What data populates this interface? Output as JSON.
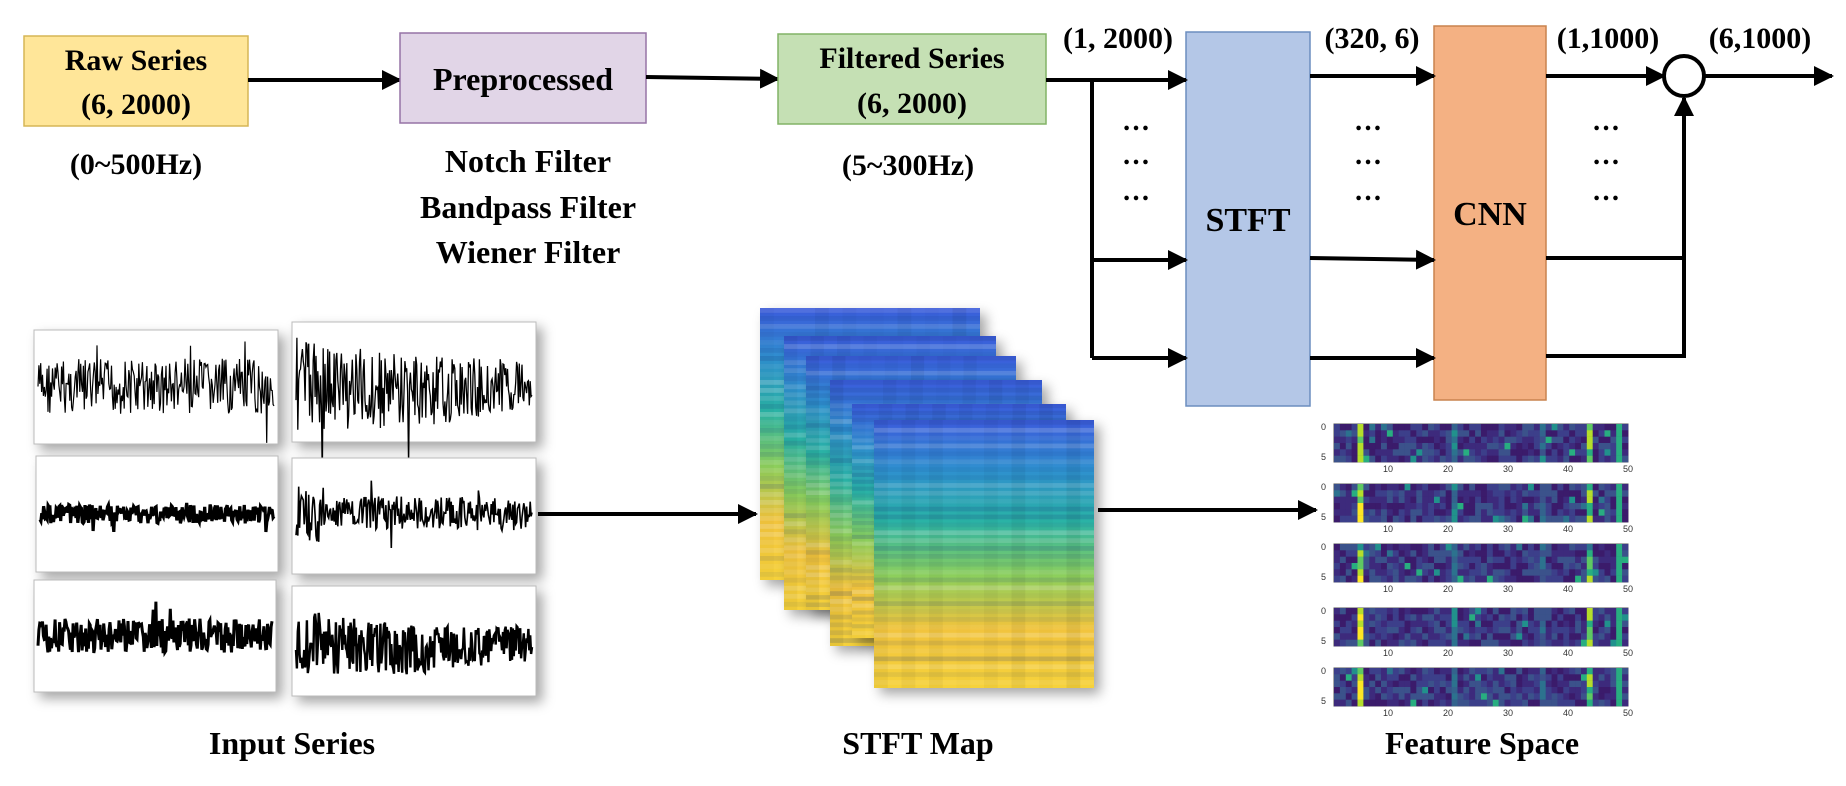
{
  "blocks": {
    "raw": {
      "line1": "Raw Series",
      "line2": "(6, 2000)",
      "note": "(0~500Hz)",
      "fill": "#ffe699",
      "stroke": "#d6b656"
    },
    "preprocessed": {
      "label": "Preprocessed",
      "fill": "#e1d5e7",
      "stroke": "#9673a6",
      "filters": [
        "Notch Filter",
        "Bandpass Filter",
        "Wiener Filter"
      ]
    },
    "filtered": {
      "line1": "Filtered Series",
      "line2": "(6, 2000)",
      "note": "(5~300Hz)",
      "fill": "#c5e0b4",
      "stroke": "#82b366"
    },
    "stft": {
      "label": "STFT",
      "fill": "#b4c7e7",
      "stroke": "#6c8ebf"
    },
    "cnn": {
      "label": "CNN",
      "fill": "#f4b183",
      "stroke": "#c9834e"
    }
  },
  "shapes": {
    "stft_in": "(1, 2000)",
    "stft_out": "(320, 6)",
    "cnn_out": "(1,1000)",
    "final": "(6,1000)"
  },
  "ellipsis": "…",
  "captions": {
    "input": "Input Series",
    "stft_map": "STFT Map",
    "feature": "Feature Space"
  },
  "feature_axis": {
    "y_ticks": [
      "0",
      "5"
    ],
    "x_ticks": [
      "10",
      "20",
      "30",
      "40",
      "50"
    ]
  }
}
